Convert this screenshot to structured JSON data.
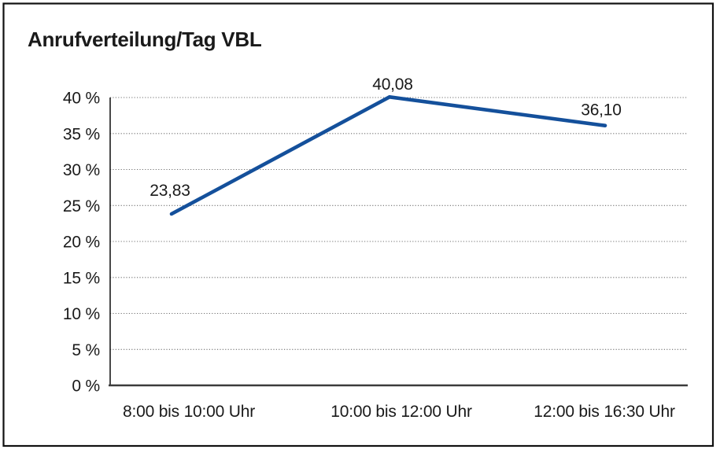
{
  "frame": {
    "background": "#ffffff",
    "border_color": "#111111"
  },
  "chart_data": {
    "type": "line",
    "title": "Anrufverteilung/Tag VBL",
    "categories": [
      "8:00 bis 10:00 Uhr",
      "10:00 bis 12:00 Uhr",
      "12:00 bis 16:30 Uhr"
    ],
    "values": [
      23.83,
      40.08,
      36.1
    ],
    "data_labels": [
      "23,83",
      "40,08",
      "36,10"
    ],
    "y_tick_labels": [
      "0 %",
      "5 %",
      "10 %",
      "15 %",
      "20 %",
      "25 %",
      "30 %",
      "35 %",
      "40 %"
    ],
    "ylim": [
      0,
      40
    ],
    "y_tick_step": 5,
    "xlabel": "",
    "ylabel": "",
    "grid": "horizontal-dotted",
    "legend": "none",
    "line_color": "#14509B",
    "gridline_color": "#707070",
    "axis_color": "#1a1a1a",
    "x_axis_color": "#3c3c3c",
    "text_color": "#1a1a1a"
  }
}
